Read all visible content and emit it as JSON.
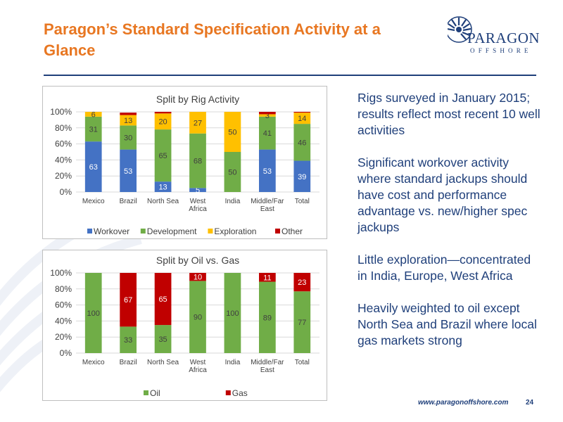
{
  "slide": {
    "title": "Paragon’s Standard Specification Activity at a Glance",
    "logo_name": "PARAGON",
    "logo_sub": "OFFSHORE",
    "footer_url": "www.paragonoffshore.com",
    "page_number": "24"
  },
  "bullets": [
    "Rigs surveyed in January 2015; results reflect most recent 10 well activities",
    "Significant workover activity where standard jackups should have cost and performance advantage vs. new/higher spec jackups",
    "Little exploration—concentrated in India, Europe, West Africa",
    "Heavily weighted to oil except North Sea and Brazil where local gas markets strong"
  ],
  "colors": {
    "title": "#e87722",
    "navy": "#1f3f7a",
    "workover": "#4472c4",
    "development": "#70ad47",
    "exploration": "#ffc000",
    "other": "#c00000"
  },
  "chart_data": [
    {
      "type": "bar",
      "stacked": true,
      "title": "Split by Rig Activity",
      "categories": [
        "Mexico",
        "Brazil",
        "North Sea",
        "West Africa",
        "India",
        "Middle/Far East",
        "Total"
      ],
      "category_lines": [
        [
          "Mexico"
        ],
        [
          "Brazil"
        ],
        [
          "North Sea"
        ],
        [
          "West",
          "Africa"
        ],
        [
          "India"
        ],
        [
          "Middle/Far",
          "East"
        ],
        [
          "Total"
        ]
      ],
      "yticks": [
        "0%",
        "20%",
        "40%",
        "60%",
        "80%",
        "100%"
      ],
      "ylim": [
        0,
        100
      ],
      "legend_position": "bottom",
      "series": [
        {
          "name": "Workover",
          "color": "#4472c4",
          "values": [
            63,
            53,
            13,
            5,
            0,
            53,
            39
          ],
          "labels": [
            "63",
            "53",
            "13",
            "5",
            "",
            "53",
            "39"
          ]
        },
        {
          "name": "Development",
          "color": "#70ad47",
          "values": [
            31,
            30,
            65,
            68,
            50,
            41,
            46
          ],
          "labels": [
            "31",
            "30",
            "65",
            "68",
            "50",
            "41",
            "46"
          ]
        },
        {
          "name": "Exploration",
          "color": "#ffc000",
          "values": [
            6,
            13,
            20,
            27,
            50,
            3,
            14
          ],
          "labels": [
            "6",
            "13",
            "20",
            "27",
            "50",
            "3",
            "14"
          ]
        },
        {
          "name": "Other",
          "color": "#c00000",
          "values": [
            0,
            3,
            2,
            0,
            0,
            3,
            1
          ],
          "labels": [
            "",
            "",
            "",
            "",
            "",
            "",
            ""
          ]
        }
      ]
    },
    {
      "type": "bar",
      "stacked": true,
      "title": "Split by Oil vs. Gas",
      "categories": [
        "Mexico",
        "Brazil",
        "North Sea",
        "West Africa",
        "India",
        "Middle/Far East",
        "Total"
      ],
      "category_lines": [
        [
          "Mexico"
        ],
        [
          "Brazil"
        ],
        [
          "North Sea"
        ],
        [
          "West",
          "Africa"
        ],
        [
          "India"
        ],
        [
          "Middle/Far",
          "East"
        ],
        [
          "Total"
        ]
      ],
      "yticks": [
        "0%",
        "20%",
        "40%",
        "60%",
        "80%",
        "100%"
      ],
      "ylim": [
        0,
        100
      ],
      "legend_position": "bottom",
      "series": [
        {
          "name": "Oil",
          "color": "#70ad47",
          "values": [
            100,
            33,
            35,
            90,
            100,
            89,
            77
          ],
          "labels": [
            "100",
            "33",
            "35",
            "90",
            "100",
            "89",
            "77"
          ]
        },
        {
          "name": "Gas",
          "color": "#c00000",
          "values": [
            0,
            67,
            65,
            10,
            0,
            11,
            23
          ],
          "labels": [
            "",
            "67",
            "65",
            "10",
            "",
            "11",
            "23"
          ]
        }
      ]
    }
  ]
}
